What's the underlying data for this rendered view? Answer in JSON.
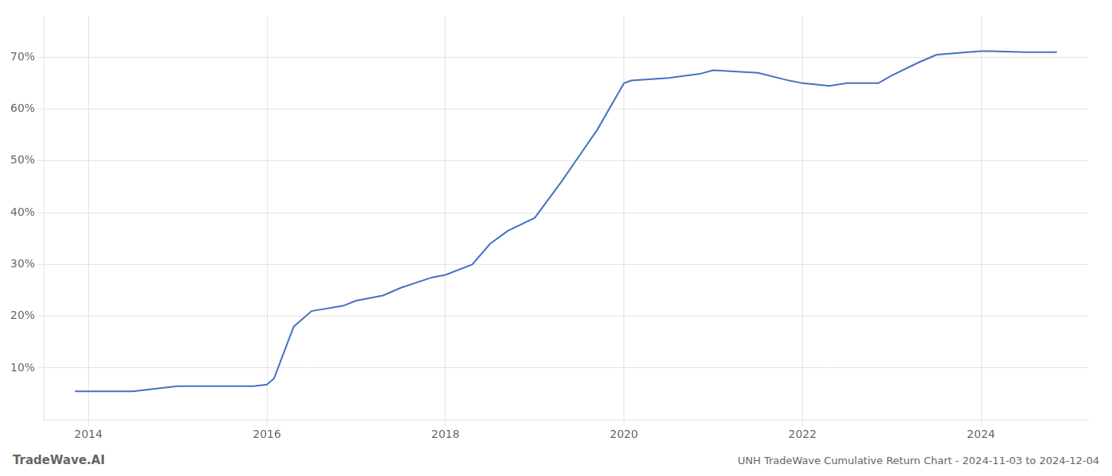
{
  "chart_data": {
    "type": "line",
    "x": [
      2013.85,
      2014.0,
      2014.5,
      2015.0,
      2015.08,
      2015.85,
      2016.0,
      2016.08,
      2016.3,
      2016.5,
      2016.85,
      2017.0,
      2017.3,
      2017.5,
      2017.85,
      2018.0,
      2018.3,
      2018.5,
      2018.7,
      2019.0,
      2019.3,
      2019.5,
      2019.7,
      2020.0,
      2020.08,
      2020.5,
      2020.85,
      2021.0,
      2021.3,
      2021.5,
      2021.85,
      2022.0,
      2022.3,
      2022.5,
      2022.85,
      2023.0,
      2023.3,
      2023.5,
      2023.85,
      2024.0,
      2024.1,
      2024.5,
      2024.85
    ],
    "values": [
      5.5,
      5.5,
      5.5,
      6.5,
      6.5,
      6.5,
      6.8,
      8.0,
      18.0,
      21.0,
      22.0,
      23.0,
      24.0,
      25.5,
      27.5,
      28.0,
      30.0,
      34.0,
      36.5,
      39.0,
      46.0,
      51.0,
      56.0,
      65.0,
      65.5,
      66.0,
      66.8,
      67.5,
      67.2,
      67.0,
      65.5,
      65.0,
      64.5,
      65.0,
      65.0,
      66.5,
      69.0,
      70.5,
      71.0,
      71.2,
      71.2,
      71.0,
      71.0
    ],
    "color": "#4472c4",
    "xlim": [
      2013.5,
      2025.2
    ],
    "ylim": [
      0,
      78
    ],
    "xticks": [
      2014,
      2016,
      2018,
      2020,
      2022,
      2024
    ],
    "yticks": [
      {
        "value": 10,
        "label": "10%"
      },
      {
        "value": 20,
        "label": "20%"
      },
      {
        "value": 30,
        "label": "30%"
      },
      {
        "value": 40,
        "label": "40%"
      },
      {
        "value": 50,
        "label": "50%"
      },
      {
        "value": 60,
        "label": "60%"
      },
      {
        "value": 70,
        "label": "70%"
      }
    ],
    "grid": true,
    "annotations": [
      "TradeWave.AI",
      "UNH TradeWave Cumulative Return Chart - 2024-11-03 to 2024-12-04"
    ]
  }
}
